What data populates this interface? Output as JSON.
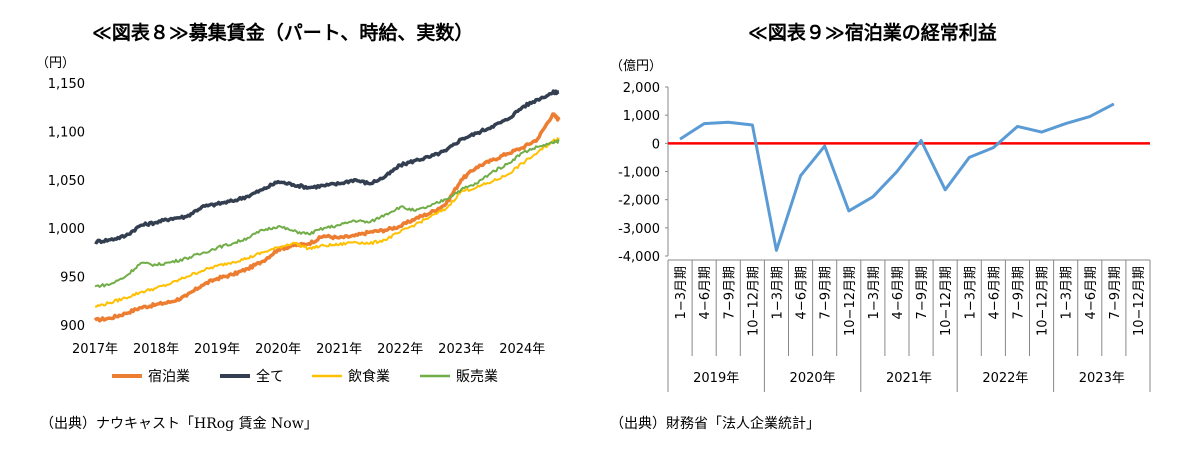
{
  "chart_data": [
    {
      "type": "line",
      "title": "≪図表８≫募集賃金（パート、時給、実数）",
      "unit": "（円）",
      "ylim": [
        900,
        1150
      ],
      "yticks": [
        "1,150",
        "1,100",
        "1,050",
        "1,000",
        "950",
        "900"
      ],
      "ytick_values": [
        1150,
        1100,
        1050,
        1000,
        950,
        900
      ],
      "xlim": [
        2017,
        2024.7
      ],
      "xticks": [
        "2017年",
        "2018年",
        "2019年",
        "2020年",
        "2021年",
        "2022年",
        "2023年",
        "2024年"
      ],
      "xtick_values": [
        2017,
        2018,
        2019,
        2020,
        2021,
        2022,
        2023,
        2024
      ],
      "series": [
        {
          "name": "宿泊業",
          "color": "#ed7d31",
          "x": [
            2017.0,
            2017.25,
            2017.5,
            2017.75,
            2018.0,
            2018.25,
            2018.5,
            2018.75,
            2019.0,
            2019.25,
            2019.5,
            2019.75,
            2020.0,
            2020.25,
            2020.5,
            2020.75,
            2021.0,
            2021.25,
            2021.5,
            2021.75,
            2022.0,
            2022.25,
            2022.5,
            2022.75,
            2023.0,
            2023.25,
            2023.5,
            2023.75,
            2024.0,
            2024.25,
            2024.5,
            2024.6
          ],
          "values": [
            905,
            907,
            912,
            918,
            921,
            924,
            930,
            941,
            948,
            952,
            958,
            966,
            978,
            982,
            984,
            992,
            990,
            992,
            996,
            998,
            1002,
            1010,
            1016,
            1025,
            1050,
            1063,
            1070,
            1077,
            1083,
            1092,
            1118,
            1112
          ]
        },
        {
          "name": "全て",
          "color": "#333f50",
          "x": [
            2017.0,
            2017.25,
            2017.5,
            2017.75,
            2018.0,
            2018.25,
            2018.5,
            2018.75,
            2019.0,
            2019.25,
            2019.5,
            2019.75,
            2020.0,
            2020.25,
            2020.5,
            2020.75,
            2021.0,
            2021.25,
            2021.5,
            2021.75,
            2022.0,
            2022.25,
            2022.5,
            2022.75,
            2023.0,
            2023.25,
            2023.5,
            2023.75,
            2024.0,
            2024.25,
            2024.5,
            2024.6
          ],
          "values": [
            986,
            988,
            992,
            1003,
            1006,
            1010,
            1012,
            1022,
            1025,
            1028,
            1033,
            1040,
            1048,
            1045,
            1042,
            1044,
            1046,
            1050,
            1046,
            1053,
            1065,
            1070,
            1074,
            1080,
            1092,
            1098,
            1105,
            1112,
            1125,
            1133,
            1140,
            1141
          ]
        },
        {
          "name": "飲食業",
          "color": "#ffc000",
          "x": [
            2017.0,
            2017.25,
            2017.5,
            2017.75,
            2018.0,
            2018.25,
            2018.5,
            2018.75,
            2019.0,
            2019.25,
            2019.5,
            2019.75,
            2020.0,
            2020.25,
            2020.5,
            2020.75,
            2021.0,
            2021.25,
            2021.5,
            2021.75,
            2022.0,
            2022.25,
            2022.5,
            2022.75,
            2023.0,
            2023.25,
            2023.5,
            2023.75,
            2024.0,
            2024.25,
            2024.5,
            2024.6
          ],
          "values": [
            919,
            923,
            928,
            934,
            938,
            943,
            950,
            956,
            961,
            965,
            969,
            975,
            980,
            985,
            979,
            982,
            983,
            986,
            984,
            988,
            996,
            1004,
            1012,
            1020,
            1038,
            1042,
            1048,
            1055,
            1067,
            1078,
            1090,
            1093
          ]
        },
        {
          "name": "販売業",
          "color": "#70ad47",
          "x": [
            2017.0,
            2017.25,
            2017.5,
            2017.75,
            2018.0,
            2018.25,
            2018.5,
            2018.75,
            2019.0,
            2019.25,
            2019.5,
            2019.75,
            2020.0,
            2020.25,
            2020.5,
            2020.75,
            2021.0,
            2021.25,
            2021.5,
            2021.75,
            2022.0,
            2022.25,
            2022.5,
            2022.75,
            2023.0,
            2023.25,
            2023.5,
            2023.75,
            2024.0,
            2024.25,
            2024.5,
            2024.6
          ],
          "values": [
            940,
            942,
            950,
            964,
            962,
            965,
            969,
            974,
            980,
            984,
            990,
            998,
            1002,
            997,
            994,
            1000,
            1003,
            1008,
            1006,
            1014,
            1022,
            1018,
            1023,
            1030,
            1040,
            1046,
            1058,
            1066,
            1078,
            1084,
            1088,
            1090
          ]
        }
      ],
      "legend": "bottom",
      "source": "（出典）ナウキャスト「HRog 賃金 Now」"
    },
    {
      "type": "line",
      "title": "≪図表９≫宿泊業の経常利益",
      "unit": "（億円）",
      "ylim": [
        -4000,
        2000
      ],
      "yticks": [
        "2,000",
        "1,000",
        "0",
        "-1,000",
        "-2,000",
        "-3,000",
        "-4,000"
      ],
      "ytick_values": [
        2000,
        1000,
        0,
        -1000,
        -2000,
        -3000,
        -4000
      ],
      "categories": [
        "1−3月期",
        "4−6月期",
        "7−9月期",
        "10−12月期",
        "1−3月期",
        "4−6月期",
        "7−9月期",
        "10−12月期",
        "1−3月期",
        "4−6月期",
        "7−9月期",
        "10−12月期",
        "1−3月期",
        "4−6月期",
        "7−9月期",
        "10−12月期",
        "1−3月期",
        "4−6月期",
        "7−9月期",
        "10−12月期"
      ],
      "groups": [
        "2019年",
        "2020年",
        "2021年",
        "2022年",
        "2023年"
      ],
      "series": [
        {
          "color": "#5b9bd5",
          "values": [
            150,
            700,
            750,
            650,
            -3800,
            -1150,
            -100,
            -2400,
            -1900,
            -1000,
            100,
            -1650,
            -500,
            -150,
            600,
            400,
            700,
            950,
            1400,
            null
          ]
        }
      ],
      "zero_line_color": "#ff0000",
      "source": "（出典）財務省「法人企業統計」"
    }
  ]
}
